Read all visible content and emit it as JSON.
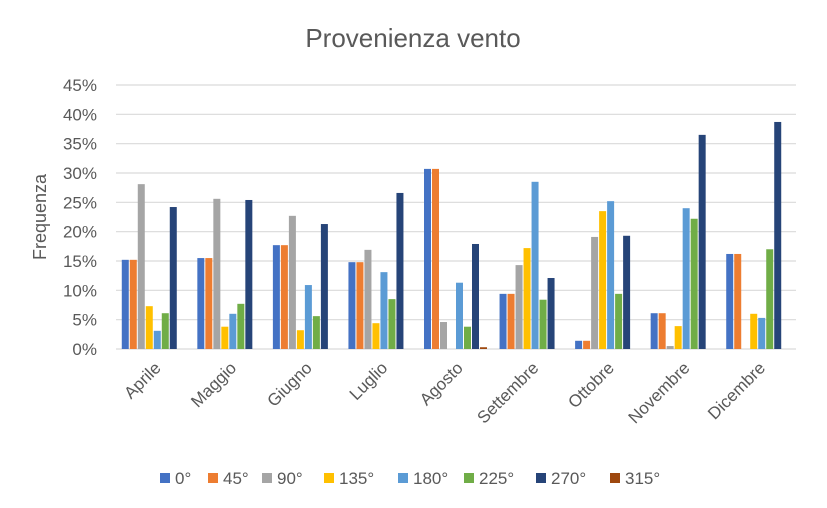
{
  "chart_data": {
    "type": "bar",
    "title": "Provenienza vento",
    "xlabel": "",
    "ylabel": "Frequenza",
    "ylim": [
      0,
      45
    ],
    "yticks": [
      "0%",
      "5%",
      "10%",
      "15%",
      "20%",
      "25%",
      "30%",
      "35%",
      "40%",
      "45%"
    ],
    "grid": true,
    "legend_position": "bottom",
    "categories": [
      "Aprile",
      "Maggio",
      "Giugno",
      "Luglio",
      "Agosto",
      "Settembre",
      "Ottobre",
      "Novembre",
      "Dicembre"
    ],
    "series": [
      {
        "name": "0°",
        "color": "#4472C4",
        "values": [
          15.2,
          15.5,
          17.7,
          14.8,
          30.7,
          9.4,
          1.4,
          6.1,
          16.2
        ]
      },
      {
        "name": "45°",
        "color": "#ED7D31",
        "values": [
          15.2,
          15.5,
          17.7,
          14.8,
          30.7,
          9.4,
          1.4,
          6.1,
          16.2
        ]
      },
      {
        "name": "90°",
        "color": "#A5A5A5",
        "values": [
          28.1,
          25.6,
          22.7,
          16.9,
          4.6,
          14.3,
          19.1,
          0.5,
          0
        ]
      },
      {
        "name": "135°",
        "color": "#FFC000",
        "values": [
          7.3,
          3.8,
          3.2,
          4.4,
          0,
          17.2,
          23.5,
          3.9,
          6.0
        ]
      },
      {
        "name": "180°",
        "color": "#5B9BD5",
        "values": [
          3.1,
          6.0,
          10.9,
          13.1,
          11.3,
          28.5,
          25.2,
          24.0,
          5.3
        ]
      },
      {
        "name": "225°",
        "color": "#70AD47",
        "values": [
          6.1,
          7.7,
          5.6,
          8.5,
          3.8,
          8.4,
          9.4,
          22.2,
          17.0
        ]
      },
      {
        "name": "270°",
        "color": "#264478",
        "values": [
          24.2,
          25.4,
          21.3,
          26.6,
          17.9,
          12.1,
          19.3,
          36.5,
          38.7
        ]
      },
      {
        "name": "315°",
        "color": "#9E480E",
        "values": [
          0,
          0,
          0,
          0,
          0.3,
          0,
          0,
          0,
          0
        ]
      }
    ]
  }
}
